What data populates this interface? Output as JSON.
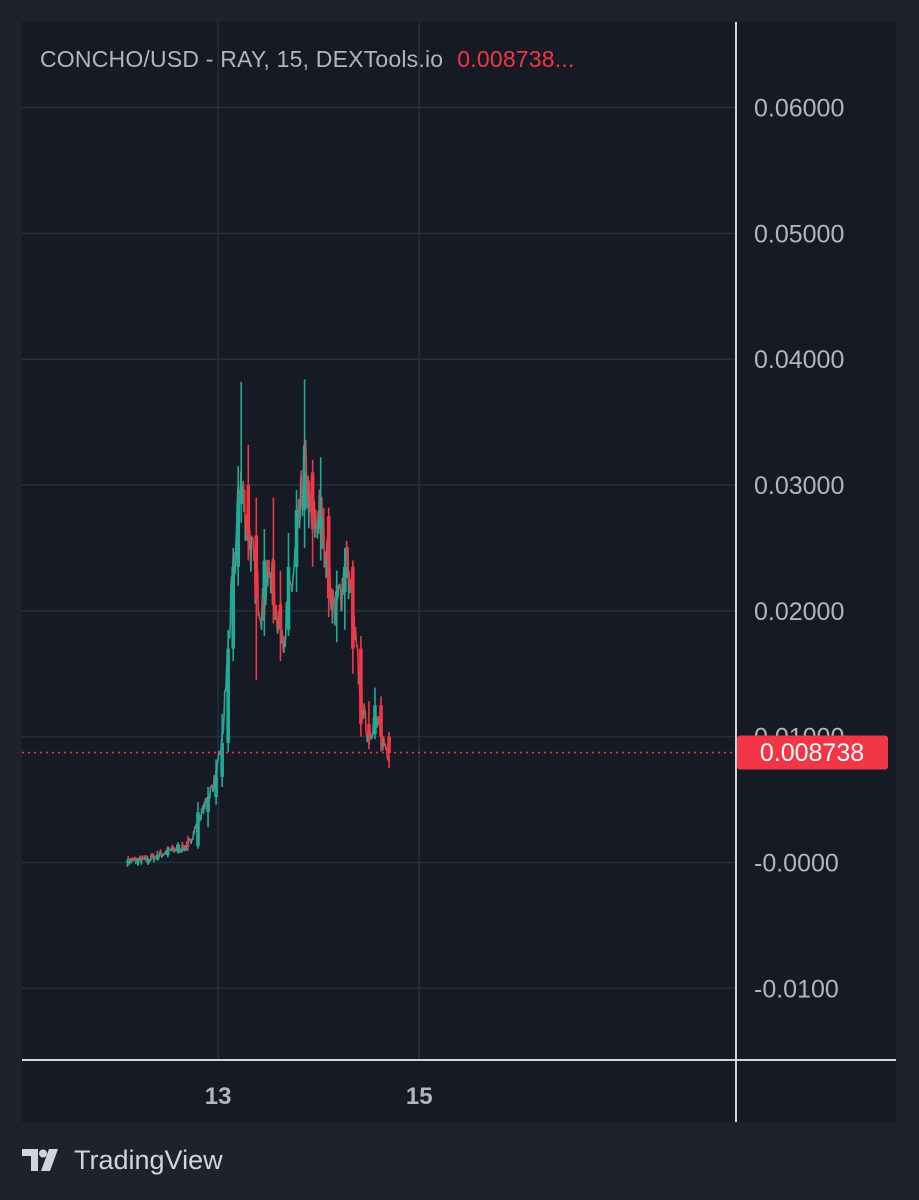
{
  "legend": {
    "symbol_text": "CONCHO/USD - RAY, 15, DEXTools.io",
    "price_text": "0.008738..."
  },
  "brand": {
    "name": "TradingView"
  },
  "colors": {
    "background": "#1e222d",
    "plot_background": "#161a25",
    "grid": "#2a2e39",
    "axis_text": "#b2b5be",
    "up": "#22ab94",
    "down": "#f23645",
    "last_price": "#f23645"
  },
  "chart_data": {
    "type": "candlestick",
    "title": "CONCHO/USD - RAY, 15, DEXTools.io",
    "xlabel": "",
    "ylabel": "",
    "y_ticks": [
      "0.06000",
      "0.05000",
      "0.04000",
      "0.03000",
      "0.02000",
      "0.01000",
      "-0.0000",
      "-0.0100"
    ],
    "y_tick_values": [
      0.06,
      0.05,
      0.04,
      0.03,
      0.02,
      0.01,
      0,
      -0.01
    ],
    "ylim": [
      -0.0157,
      0.0668
    ],
    "x_ticks": [
      "13",
      "15"
    ],
    "x_tick_values": [
      13,
      15
    ],
    "xlim": [
      11.05,
      18.15
    ],
    "grid": true,
    "last_price": 0.008738,
    "last_price_label": "0.008738",
    "series": [
      {
        "trend": [
          [
            12.1,
            0.0001
          ],
          [
            12.3,
            0.0002
          ],
          [
            12.5,
            0.0009
          ],
          [
            12.7,
            0.0013
          ],
          [
            12.85,
            0.0042
          ],
          [
            12.98,
            0.0068
          ],
          [
            13.04,
            0.0095
          ],
          [
            13.08,
            0.0145
          ],
          [
            13.12,
            0.0195
          ],
          [
            13.17,
            0.0245
          ],
          [
            13.22,
            0.0305
          ],
          [
            13.26,
            0.0285
          ],
          [
            13.31,
            0.026
          ],
          [
            13.37,
            0.0225
          ],
          [
            13.44,
            0.02
          ],
          [
            13.52,
            0.0235
          ],
          [
            13.58,
            0.02
          ],
          [
            13.66,
            0.0182
          ],
          [
            13.75,
            0.023
          ],
          [
            13.81,
            0.027
          ],
          [
            13.86,
            0.0318
          ],
          [
            13.93,
            0.0265
          ],
          [
            14.02,
            0.0278
          ],
          [
            14.08,
            0.0245
          ],
          [
            14.15,
            0.02
          ],
          [
            14.22,
            0.0214
          ],
          [
            14.28,
            0.0242
          ],
          [
            14.34,
            0.0195
          ],
          [
            14.4,
            0.0148
          ],
          [
            14.46,
            0.0112
          ],
          [
            14.5,
            0.01
          ],
          [
            14.56,
            0.0116
          ],
          [
            14.62,
            0.01
          ],
          [
            14.7,
            0.0087
          ]
        ],
        "candles": [
          [
            12.1,
            0.0001,
            0.0003,
            -0.0003,
            0.0001
          ],
          [
            12.2,
            0.0001,
            0.0003,
            -0.0002,
            0.0002
          ],
          [
            12.3,
            0.0002,
            0.0004,
            -0.0002,
            0.0003
          ],
          [
            12.4,
            0.0003,
            0.0007,
            0.0002,
            0.0006
          ],
          [
            12.5,
            0.0006,
            0.0012,
            0.0004,
            0.0009
          ],
          [
            12.6,
            0.0009,
            0.0016,
            0.0007,
            0.0014
          ],
          [
            12.7,
            0.0014,
            0.0021,
            0.0009,
            0.0013
          ],
          [
            12.8,
            0.0013,
            0.0048,
            0.0011,
            0.004
          ],
          [
            12.9,
            0.004,
            0.006,
            0.0028,
            0.0052
          ],
          [
            12.98,
            0.0052,
            0.0082,
            0.0046,
            0.0068
          ],
          [
            13.04,
            0.0068,
            0.0118,
            0.006,
            0.0095
          ],
          [
            13.1,
            0.0095,
            0.0185,
            0.0088,
            0.017
          ],
          [
            13.15,
            0.017,
            0.025,
            0.016,
            0.0235
          ],
          [
            13.2,
            0.0235,
            0.0315,
            0.022,
            0.0285
          ],
          [
            13.23,
            0.0285,
            0.0382,
            0.027,
            0.03
          ],
          [
            13.3,
            0.03,
            0.0332,
            0.024,
            0.026
          ],
          [
            13.38,
            0.026,
            0.029,
            0.0145,
            0.021
          ],
          [
            13.46,
            0.021,
            0.0265,
            0.018,
            0.024
          ],
          [
            13.55,
            0.024,
            0.029,
            0.019,
            0.0205
          ],
          [
            13.62,
            0.0205,
            0.0232,
            0.016,
            0.0185
          ],
          [
            13.7,
            0.0185,
            0.0262,
            0.018,
            0.0235
          ],
          [
            13.78,
            0.0235,
            0.0296,
            0.0215,
            0.028
          ],
          [
            13.86,
            0.028,
            0.0384,
            0.025,
            0.031
          ],
          [
            13.94,
            0.031,
            0.032,
            0.0235,
            0.0265
          ],
          [
            14.02,
            0.0265,
            0.0322,
            0.024,
            0.0275
          ],
          [
            14.1,
            0.0275,
            0.0282,
            0.0195,
            0.021
          ],
          [
            14.18,
            0.021,
            0.0232,
            0.0175,
            0.0215
          ],
          [
            14.26,
            0.0215,
            0.025,
            0.0185,
            0.0235
          ],
          [
            14.34,
            0.0235,
            0.024,
            0.015,
            0.017
          ],
          [
            14.42,
            0.017,
            0.018,
            0.01,
            0.011
          ],
          [
            14.5,
            0.011,
            0.0128,
            0.009,
            0.0102
          ],
          [
            14.56,
            0.0102,
            0.0139,
            0.0098,
            0.0125
          ],
          [
            14.62,
            0.0125,
            0.0132,
            0.0088,
            0.01
          ],
          [
            14.7,
            0.01,
            0.0104,
            0.0075,
            0.0087
          ]
        ]
      }
    ]
  }
}
